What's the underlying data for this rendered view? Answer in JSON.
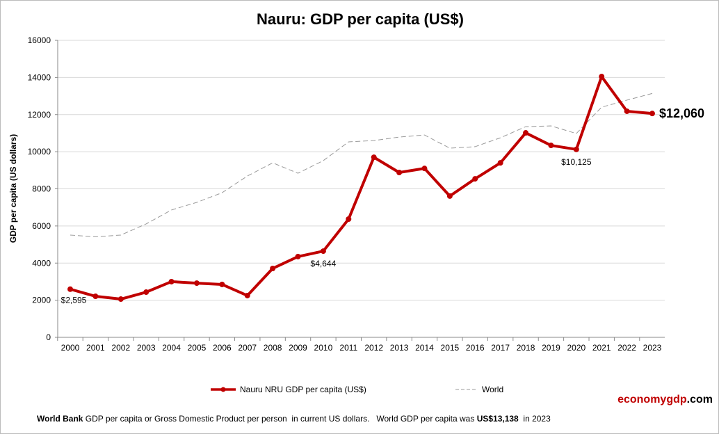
{
  "chart_data": {
    "type": "line",
    "title": "Nauru: GDP per capita (US$)",
    "xlabel": "",
    "ylabel": "GDP per capita (US dollars)",
    "ylim": [
      0,
      16000
    ],
    "yticks": [
      0,
      2000,
      4000,
      6000,
      8000,
      10000,
      12000,
      14000,
      16000
    ],
    "grid": true,
    "legend_position": "bottom",
    "x": [
      2000,
      2001,
      2002,
      2003,
      2004,
      2005,
      2006,
      2007,
      2008,
      2009,
      2010,
      2011,
      2012,
      2013,
      2014,
      2015,
      2016,
      2017,
      2018,
      2019,
      2020,
      2021,
      2022,
      2023
    ],
    "series": [
      {
        "name": "Nauru NRU GDP per capita (US$)",
        "color": "#c00000",
        "style": "solid-markers",
        "values": [
          2595,
          2210,
          2060,
          2435,
          3000,
          2920,
          2850,
          2250,
          3710,
          4350,
          4644,
          6370,
          9700,
          8880,
          9100,
          7610,
          8540,
          9400,
          11015,
          10340,
          10125,
          14050,
          12180,
          12060
        ]
      },
      {
        "name": "World",
        "color": "#999999",
        "style": "dashed",
        "values": [
          5510,
          5415,
          5510,
          6110,
          6860,
          7270,
          7790,
          8690,
          9400,
          8840,
          9520,
          10530,
          10600,
          10790,
          10900,
          10190,
          10270,
          10750,
          11350,
          11390,
          10980,
          12400,
          12780,
          13138
        ]
      }
    ],
    "annotations": [
      {
        "x": 2000,
        "label": "$2,595"
      },
      {
        "x": 2010,
        "label": "$4,644"
      },
      {
        "x": 2020,
        "label": "$10,125"
      },
      {
        "x": 2023,
        "label": "$12,060"
      }
    ]
  },
  "brand": {
    "part1": "economy",
    "part2": "gdp",
    "part3": ".com",
    "color1": "#c00000",
    "color2": "#000000"
  },
  "footer": {
    "source": "World Bank",
    "text": " GDP per capita or Gross Domestic Product per person  in current US dollars.   World GDP per capita was ",
    "value": "US$13,138",
    "suffix": "  in 2023"
  }
}
